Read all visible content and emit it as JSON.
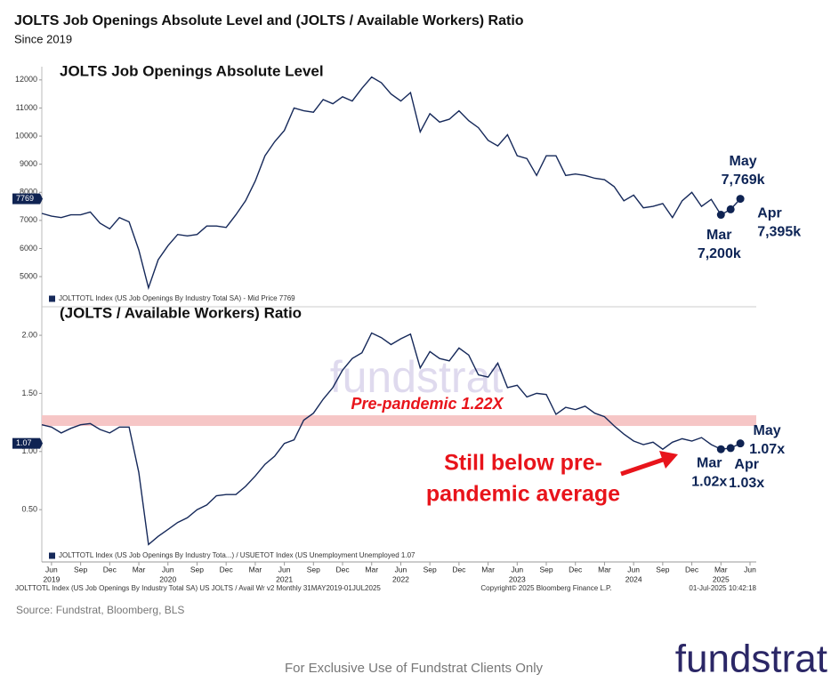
{
  "header": {
    "title": "JOLTS Job Openings Absolute Level and (JOLTS / Available Workers) Ratio",
    "subtitle": "Since 2019"
  },
  "watermark": "fundstrat",
  "chart_data": [
    {
      "type": "line",
      "title": "JOLTS Job Openings Absolute Level",
      "x": [
        "2019-05",
        "2019-06",
        "2019-07",
        "2019-08",
        "2019-09",
        "2019-10",
        "2019-11",
        "2019-12",
        "2020-01",
        "2020-02",
        "2020-03",
        "2020-04",
        "2020-05",
        "2020-06",
        "2020-07",
        "2020-08",
        "2020-09",
        "2020-10",
        "2020-11",
        "2020-12",
        "2021-01",
        "2021-02",
        "2021-03",
        "2021-04",
        "2021-05",
        "2021-06",
        "2021-07",
        "2021-08",
        "2021-09",
        "2021-10",
        "2021-11",
        "2021-12",
        "2022-01",
        "2022-02",
        "2022-03",
        "2022-04",
        "2022-05",
        "2022-06",
        "2022-07",
        "2022-08",
        "2022-09",
        "2022-10",
        "2022-11",
        "2022-12",
        "2023-01",
        "2023-02",
        "2023-03",
        "2023-04",
        "2023-05",
        "2023-06",
        "2023-07",
        "2023-08",
        "2023-09",
        "2023-10",
        "2023-11",
        "2023-12",
        "2024-01",
        "2024-02",
        "2024-03",
        "2024-04",
        "2024-05",
        "2024-06",
        "2024-07",
        "2024-08",
        "2024-09",
        "2024-10",
        "2024-11",
        "2024-12",
        "2025-01",
        "2025-02",
        "2025-03",
        "2025-04",
        "2025-05"
      ],
      "series": [
        {
          "name": "JOLTTOTL Index (US Job Openings By Industry Total SA) - Mid Price 7769",
          "color": "#16295a",
          "values": [
            7250,
            7150,
            7100,
            7200,
            7200,
            7300,
            6900,
            6700,
            7100,
            6950,
            5950,
            4600,
            5600,
            6100,
            6500,
            6450,
            6500,
            6800,
            6800,
            6750,
            7200,
            7700,
            8400,
            9300,
            9800,
            10200,
            11000,
            10900,
            10850,
            11300,
            11150,
            11400,
            11250,
            11700,
            12100,
            11900,
            11500,
            11250,
            11550,
            10150,
            10800,
            10500,
            10600,
            10900,
            10550,
            10300,
            9850,
            9650,
            10050,
            9300,
            9200,
            8600,
            9300,
            9300,
            8600,
            8650,
            8600,
            8500,
            8450,
            8200,
            7700,
            7900,
            7450,
            7500,
            7600,
            7100,
            7700,
            8000,
            7500,
            7750,
            7200,
            7395,
            7769
          ]
        }
      ],
      "ylim": [
        3990,
        12470
      ],
      "yticks": [
        5000,
        6000,
        7000,
        8000,
        9000,
        10000,
        11000,
        12000
      ],
      "annotations": [
        {
          "x": "2025-05",
          "lines": [
            "May",
            "7,769k"
          ]
        },
        {
          "x": "2025-04",
          "lines": [
            "Apr",
            "7,395k"
          ]
        },
        {
          "x": "2025-03",
          "lines": [
            "Mar",
            "7,200k"
          ]
        }
      ]
    },
    {
      "type": "line",
      "title": "(JOLTS / Available Workers) Ratio",
      "x": [
        "2019-05",
        "2019-06",
        "2019-07",
        "2019-08",
        "2019-09",
        "2019-10",
        "2019-11",
        "2019-12",
        "2020-01",
        "2020-02",
        "2020-03",
        "2020-04",
        "2020-05",
        "2020-06",
        "2020-07",
        "2020-08",
        "2020-09",
        "2020-10",
        "2020-11",
        "2020-12",
        "2021-01",
        "2021-02",
        "2021-03",
        "2021-04",
        "2021-05",
        "2021-06",
        "2021-07",
        "2021-08",
        "2021-09",
        "2021-10",
        "2021-11",
        "2021-12",
        "2022-01",
        "2022-02",
        "2022-03",
        "2022-04",
        "2022-05",
        "2022-06",
        "2022-07",
        "2022-08",
        "2022-09",
        "2022-10",
        "2022-11",
        "2022-12",
        "2023-01",
        "2023-02",
        "2023-03",
        "2023-04",
        "2023-05",
        "2023-06",
        "2023-07",
        "2023-08",
        "2023-09",
        "2023-10",
        "2023-11",
        "2023-12",
        "2024-01",
        "2024-02",
        "2024-03",
        "2024-04",
        "2024-05",
        "2024-06",
        "2024-07",
        "2024-08",
        "2024-09",
        "2024-10",
        "2024-11",
        "2024-12",
        "2025-01",
        "2025-02",
        "2025-03",
        "2025-04",
        "2025-05"
      ],
      "series": [
        {
          "name": "JOLTTOTL Index (US Job Openings By Industry Tota...) / USUETOT Index (US Unemployment Unemployed 1.07",
          "color": "#16295a",
          "values": [
            1.23,
            1.21,
            1.16,
            1.2,
            1.23,
            1.24,
            1.19,
            1.16,
            1.21,
            1.21,
            0.82,
            0.2,
            0.27,
            0.33,
            0.39,
            0.43,
            0.5,
            0.54,
            0.62,
            0.63,
            0.63,
            0.7,
            0.79,
            0.89,
            0.96,
            1.07,
            1.1,
            1.27,
            1.33,
            1.45,
            1.55,
            1.7,
            1.8,
            1.85,
            2.02,
            1.98,
            1.92,
            1.97,
            2.01,
            1.72,
            1.86,
            1.8,
            1.78,
            1.89,
            1.83,
            1.66,
            1.64,
            1.76,
            1.55,
            1.57,
            1.47,
            1.5,
            1.49,
            1.32,
            1.38,
            1.36,
            1.39,
            1.33,
            1.3,
            1.22,
            1.15,
            1.09,
            1.06,
            1.08,
            1.02,
            1.08,
            1.11,
            1.09,
            1.12,
            1.06,
            1.02,
            1.03,
            1.07
          ]
        }
      ],
      "ylim": [
        0.05,
        2.23
      ],
      "yticks": [
        {
          "value": 0.5,
          "label": "0.50"
        },
        {
          "value": 1,
          "label": "1.00"
        },
        {
          "value": 1.5,
          "label": "1.50"
        },
        {
          "value": 2,
          "label": "2.00"
        }
      ],
      "xticks": [
        {
          "value": "2019-06",
          "label": "Jun"
        },
        {
          "value": "2019-09",
          "label": "Sep"
        },
        {
          "value": "2019-12",
          "label": "Dec"
        },
        {
          "value": "2020-03",
          "label": "Mar"
        },
        {
          "value": "2020-06",
          "label": "Jun"
        },
        {
          "value": "2020-09",
          "label": "Sep"
        },
        {
          "value": "2020-12",
          "label": "Dec"
        },
        {
          "value": "2021-03",
          "label": "Mar"
        },
        {
          "value": "2021-06",
          "label": "Jun"
        },
        {
          "value": "2021-09",
          "label": "Sep"
        },
        {
          "value": "2021-12",
          "label": "Dec"
        },
        {
          "value": "2022-03",
          "label": "Mar"
        },
        {
          "value": "2022-06",
          "label": "Jun"
        },
        {
          "value": "2022-09",
          "label": "Sep"
        },
        {
          "value": "2022-12",
          "label": "Dec"
        },
        {
          "value": "2023-03",
          "label": "Mar"
        },
        {
          "value": "2023-06",
          "label": "Jun"
        },
        {
          "value": "2023-09",
          "label": "Sep"
        },
        {
          "value": "2023-12",
          "label": "Dec"
        },
        {
          "value": "2024-03",
          "label": "Mar"
        },
        {
          "value": "2024-06",
          "label": "Jun"
        },
        {
          "value": "2024-09",
          "label": "Sep"
        },
        {
          "value": "2024-12",
          "label": "Dec"
        },
        {
          "value": "2025-03",
          "label": "Mar"
        },
        {
          "value": "2025-06",
          "label": "Jun"
        }
      ],
      "year_ticks": [
        {
          "value": "2019-06",
          "label": "2019"
        },
        {
          "value": "2020-06",
          "label": "2020"
        },
        {
          "value": "2021-06",
          "label": "2021"
        },
        {
          "value": "2022-06",
          "label": "2022"
        },
        {
          "value": "2023-06",
          "label": "2023"
        },
        {
          "value": "2024-06",
          "label": "2024"
        },
        {
          "value": "2025-03",
          "label": "2025"
        }
      ],
      "reference": {
        "value": 1.22,
        "label": "Pre-pandemic 1.22X",
        "color": "#f6c6c6"
      },
      "callout": {
        "lines": [
          "Still below pre-",
          "pandemic average"
        ],
        "color": "#e8141b"
      },
      "annotations": [
        {
          "x": "2025-05",
          "lines": [
            "May",
            "1.07x"
          ]
        },
        {
          "x": "2025-04",
          "lines": [
            "Apr",
            "1.03x"
          ]
        },
        {
          "x": "2025-03",
          "lines": [
            "Mar",
            "1.02x"
          ]
        }
      ]
    }
  ],
  "footer": {
    "bloomberg_left": "JOLTTOTL Index (US Job Openings By Industry Total SA) US JOLTS / Avail Wr v2  Monthly 31MAY2019-01JUL2025",
    "bloomberg_center": "Copyright© 2025 Bloomberg Finance L.P.",
    "bloomberg_right": "01-Jul-2025 10:42:18",
    "source": "Source: Fundstrat, Bloomberg, BLS",
    "disclaimer": "For Exclusive Use of Fundstrat Clients Only",
    "logo": "fundstrat"
  }
}
